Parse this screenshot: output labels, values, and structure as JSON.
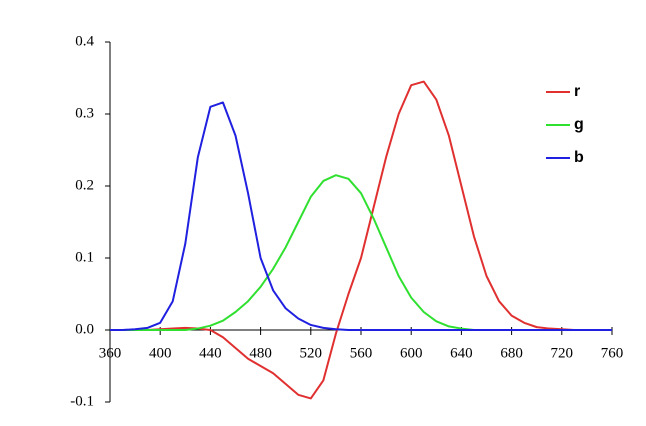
{
  "chart_data": {
    "type": "line",
    "x": [
      360,
      370,
      380,
      390,
      400,
      410,
      420,
      430,
      440,
      450,
      460,
      470,
      480,
      490,
      500,
      510,
      520,
      530,
      540,
      550,
      560,
      570,
      580,
      590,
      600,
      610,
      620,
      630,
      640,
      650,
      660,
      670,
      680,
      690,
      700,
      710,
      720,
      730,
      740,
      750,
      760
    ],
    "series": [
      {
        "name": "r",
        "color": "#e03030",
        "values": [
          0,
          0,
          0,
          0,
          0.001,
          0.002,
          0.003,
          0.002,
          0,
          -0.01,
          -0.025,
          -0.04,
          -0.05,
          -0.06,
          -0.075,
          -0.09,
          -0.095,
          -0.07,
          -0.005,
          0.05,
          0.1,
          0.17,
          0.24,
          0.3,
          0.34,
          0.345,
          0.32,
          0.27,
          0.2,
          0.13,
          0.075,
          0.04,
          0.02,
          0.01,
          0.004,
          0.002,
          0.001,
          0,
          0,
          0,
          0
        ]
      },
      {
        "name": "g",
        "color": "#30e030",
        "values": [
          0,
          0,
          0,
          0,
          0,
          0,
          0,
          0.002,
          0.006,
          0.013,
          0.025,
          0.04,
          0.06,
          0.085,
          0.115,
          0.15,
          0.185,
          0.207,
          0.215,
          0.21,
          0.19,
          0.155,
          0.115,
          0.075,
          0.045,
          0.025,
          0.012,
          0.005,
          0.002,
          0,
          0,
          0,
          0,
          0,
          0,
          0,
          0,
          0,
          0,
          0,
          0
        ]
      },
      {
        "name": "b",
        "color": "#2020e0",
        "values": [
          0,
          0,
          0.001,
          0.003,
          0.01,
          0.04,
          0.12,
          0.24,
          0.31,
          0.316,
          0.27,
          0.19,
          0.1,
          0.055,
          0.03,
          0.016,
          0.007,
          0.003,
          0.001,
          0,
          0,
          0,
          0,
          0,
          0,
          0,
          0,
          0,
          0,
          0,
          0,
          0,
          0,
          0,
          0,
          0,
          0,
          0,
          0,
          0,
          0
        ]
      }
    ],
    "xlim": [
      360,
      760
    ],
    "xticks": [
      360,
      400,
      440,
      480,
      520,
      560,
      600,
      640,
      680,
      720,
      760
    ],
    "ylim": [
      -0.1,
      0.4
    ],
    "yticks": [
      -0.1,
      {
        "value": 0,
        "label": "0.0"
      },
      0.1,
      0.2,
      0.3,
      0.4
    ],
    "legend": "upper right"
  }
}
